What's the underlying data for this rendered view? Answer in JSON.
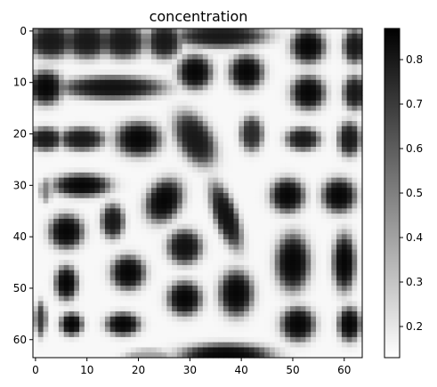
{
  "chart_data": {
    "type": "heatmap",
    "title": "concentration",
    "xlabel": "",
    "ylabel": "",
    "x_range": [
      0,
      63
    ],
    "y_range": [
      0,
      63
    ],
    "x_ticks": [
      0,
      10,
      20,
      30,
      40,
      50,
      60
    ],
    "y_ticks": [
      0,
      10,
      20,
      30,
      40,
      50,
      60
    ],
    "colormap": "gray_r",
    "value_range": [
      0.13,
      0.87
    ],
    "colorbar_ticks": [
      0.2,
      0.3,
      0.4,
      0.5,
      0.6,
      0.7,
      0.8
    ],
    "background_value": 0.15,
    "blobs": [
      {
        "cx": 3,
        "cy": 2,
        "rx": 4,
        "ry": 3,
        "value": 0.8
      },
      {
        "cx": 10,
        "cy": 2,
        "rx": 4,
        "ry": 3,
        "value": 0.8
      },
      {
        "cx": 17,
        "cy": 2,
        "rx": 4,
        "ry": 3,
        "value": 0.8
      },
      {
        "cx": 25,
        "cy": 2,
        "rx": 3,
        "ry": 3,
        "value": 0.8
      },
      {
        "cx": 36,
        "cy": 1,
        "rx": 8,
        "ry": 2,
        "value": 0.8
      },
      {
        "cx": 53,
        "cy": 3,
        "rx": 3,
        "ry": 3,
        "value": 0.85
      },
      {
        "cx": 62,
        "cy": 3,
        "rx": 2,
        "ry": 3,
        "value": 0.8
      },
      {
        "cx": 2,
        "cy": 11,
        "rx": 3,
        "ry": 3,
        "value": 0.85
      },
      {
        "cx": 15,
        "cy": 11,
        "rx": 9,
        "ry": 2,
        "value": 0.82
      },
      {
        "cx": 31,
        "cy": 8,
        "rx": 3,
        "ry": 3,
        "value": 0.85
      },
      {
        "cx": 41,
        "cy": 8,
        "rx": 3,
        "ry": 3,
        "value": 0.85
      },
      {
        "cx": 53,
        "cy": 12,
        "rx": 3,
        "ry": 3,
        "value": 0.85
      },
      {
        "cx": 62,
        "cy": 12,
        "rx": 2,
        "ry": 3,
        "value": 0.8
      },
      {
        "cx": 2,
        "cy": 21,
        "rx": 3,
        "ry": 2,
        "value": 0.8
      },
      {
        "cx": 9,
        "cy": 21,
        "rx": 4,
        "ry": 2,
        "value": 0.8
      },
      {
        "cx": 20,
        "cy": 21,
        "rx": 4,
        "ry": 3,
        "value": 0.85
      },
      {
        "cx": 31,
        "cy": 21,
        "rx": 3,
        "ry": 5,
        "value": 0.8,
        "angle": -30
      },
      {
        "cx": 42,
        "cy": 20,
        "rx": 2,
        "ry": 3,
        "value": 0.75
      },
      {
        "cx": 52,
        "cy": 21,
        "rx": 3,
        "ry": 2,
        "value": 0.8
      },
      {
        "cx": 61,
        "cy": 21,
        "rx": 2,
        "ry": 3,
        "value": 0.8
      },
      {
        "cx": 2,
        "cy": 31,
        "rx": 1,
        "ry": 2,
        "value": 0.5
      },
      {
        "cx": 9,
        "cy": 30,
        "rx": 5,
        "ry": 2,
        "value": 0.85
      },
      {
        "cx": 25,
        "cy": 33,
        "rx": 3,
        "ry": 4,
        "value": 0.85,
        "angle": 30
      },
      {
        "cx": 37,
        "cy": 36,
        "rx": 2,
        "ry": 6,
        "value": 0.82,
        "angle": -20
      },
      {
        "cx": 49,
        "cy": 32,
        "rx": 3,
        "ry": 3,
        "value": 0.85
      },
      {
        "cx": 59,
        "cy": 32,
        "rx": 3,
        "ry": 3,
        "value": 0.85
      },
      {
        "cx": 6,
        "cy": 39,
        "rx": 3,
        "ry": 3,
        "value": 0.85
      },
      {
        "cx": 15,
        "cy": 37,
        "rx": 2,
        "ry": 3,
        "value": 0.8
      },
      {
        "cx": 29,
        "cy": 42,
        "rx": 3,
        "ry": 3,
        "value": 0.82
      },
      {
        "cx": 50,
        "cy": 45,
        "rx": 3,
        "ry": 5,
        "value": 0.85
      },
      {
        "cx": 60,
        "cy": 45,
        "rx": 2,
        "ry": 5,
        "value": 0.85
      },
      {
        "cx": 6,
        "cy": 49,
        "rx": 2,
        "ry": 3,
        "value": 0.85
      },
      {
        "cx": 18,
        "cy": 47,
        "rx": 3,
        "ry": 3,
        "value": 0.85
      },
      {
        "cx": 29,
        "cy": 52,
        "rx": 3,
        "ry": 3,
        "value": 0.85
      },
      {
        "cx": 39,
        "cy": 51,
        "rx": 3,
        "ry": 4,
        "value": 0.85
      },
      {
        "cx": 51,
        "cy": 57,
        "rx": 3,
        "ry": 3,
        "value": 0.85
      },
      {
        "cx": 61,
        "cy": 57,
        "rx": 2,
        "ry": 3,
        "value": 0.85
      },
      {
        "cx": 1,
        "cy": 56,
        "rx": 1,
        "ry": 3,
        "value": 0.7
      },
      {
        "cx": 7,
        "cy": 57,
        "rx": 2,
        "ry": 2,
        "value": 0.85
      },
      {
        "cx": 17,
        "cy": 57,
        "rx": 3,
        "ry": 2,
        "value": 0.85
      },
      {
        "cx": 37,
        "cy": 63,
        "rx": 8,
        "ry": 2,
        "value": 0.85
      },
      {
        "cx": 22,
        "cy": 63,
        "rx": 4,
        "ry": 1,
        "value": 0.4
      }
    ]
  }
}
